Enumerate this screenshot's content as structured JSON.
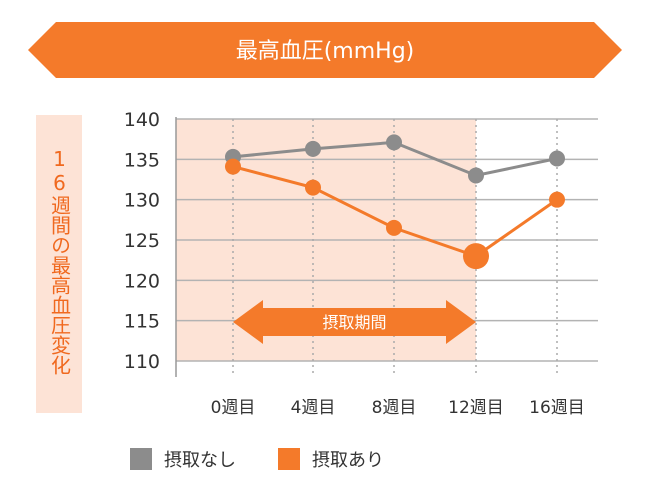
{
  "chart_data": {
    "type": "line",
    "title": "最高血圧(mmHg)",
    "ylabel": "16週間の最高血圧変化",
    "categories": [
      "0週目",
      "4週目",
      "8週目",
      "12週目",
      "16週目"
    ],
    "yticks": [
      110,
      115,
      120,
      125,
      130,
      135,
      140
    ],
    "ylim": [
      110,
      140
    ],
    "grid": true,
    "series": [
      {
        "name": "摂取なし",
        "color": "#8c8c8c",
        "values": [
          135.3,
          136.3,
          137.1,
          133.0,
          135.1
        ]
      },
      {
        "name": "摂取あり",
        "color": "#f47a2a",
        "values": [
          134.1,
          131.5,
          126.5,
          123.0,
          130.0
        ]
      }
    ],
    "annotation": {
      "label": "摂取期間",
      "from": "0週目",
      "to": "12週目"
    },
    "highlight": {
      "series": "摂取あり",
      "category": "12週目"
    },
    "shaded_region": {
      "from": "0週目",
      "to": "12週目"
    }
  },
  "colors": {
    "banner": "#f47a2a",
    "shade": "#fde3d6",
    "grid": "#b3b3b3",
    "text": "#333333"
  },
  "legend": {
    "items": [
      {
        "label": "摂取なし",
        "color": "#8c8c8c"
      },
      {
        "label": "摂取あり",
        "color": "#f47a2a"
      }
    ]
  }
}
